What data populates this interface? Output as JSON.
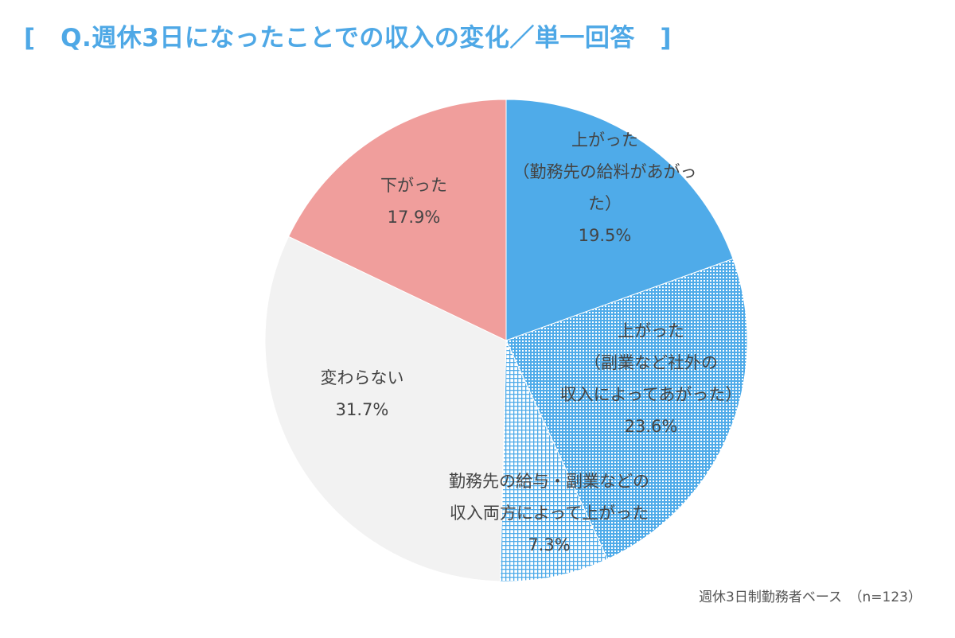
{
  "chart_data": {
    "type": "pie",
    "title": "[　Q.週休3日になったことでの収入の変化／単一回答　]",
    "note": "週休3日制勤務者ベース　（n=123）",
    "start": "12 o'clock, clockwise",
    "slices": [
      {
        "key": "main_job",
        "lines": [
          "上がった",
          "（勤務先の給料があがっ",
          "た）"
        ],
        "value": 19.5,
        "value_label": "19.5%",
        "color": "#4fabe9",
        "pattern": "solid"
      },
      {
        "key": "side_job",
        "lines": [
          "上がった",
          "（副業など社外の",
          "収入によってあがった）"
        ],
        "value": 23.6,
        "value_label": "23.6%",
        "color": "#4fabe9",
        "pattern": "dots"
      },
      {
        "key": "both",
        "lines": [
          "勤務先の給与・副業などの",
          "収入両方によって上がった"
        ],
        "value": 7.3,
        "value_label": "7.3%",
        "color": "#4fabe9",
        "pattern": "grid"
      },
      {
        "key": "unchanged",
        "lines": [
          "変わらない"
        ],
        "value": 31.7,
        "value_label": "31.7%",
        "color": "#f2f2f2",
        "pattern": "solid"
      },
      {
        "key": "decreased",
        "lines": [
          "下がった"
        ],
        "value": 17.9,
        "value_label": "17.9%",
        "color": "#f09e9c",
        "pattern": "solid"
      }
    ]
  }
}
